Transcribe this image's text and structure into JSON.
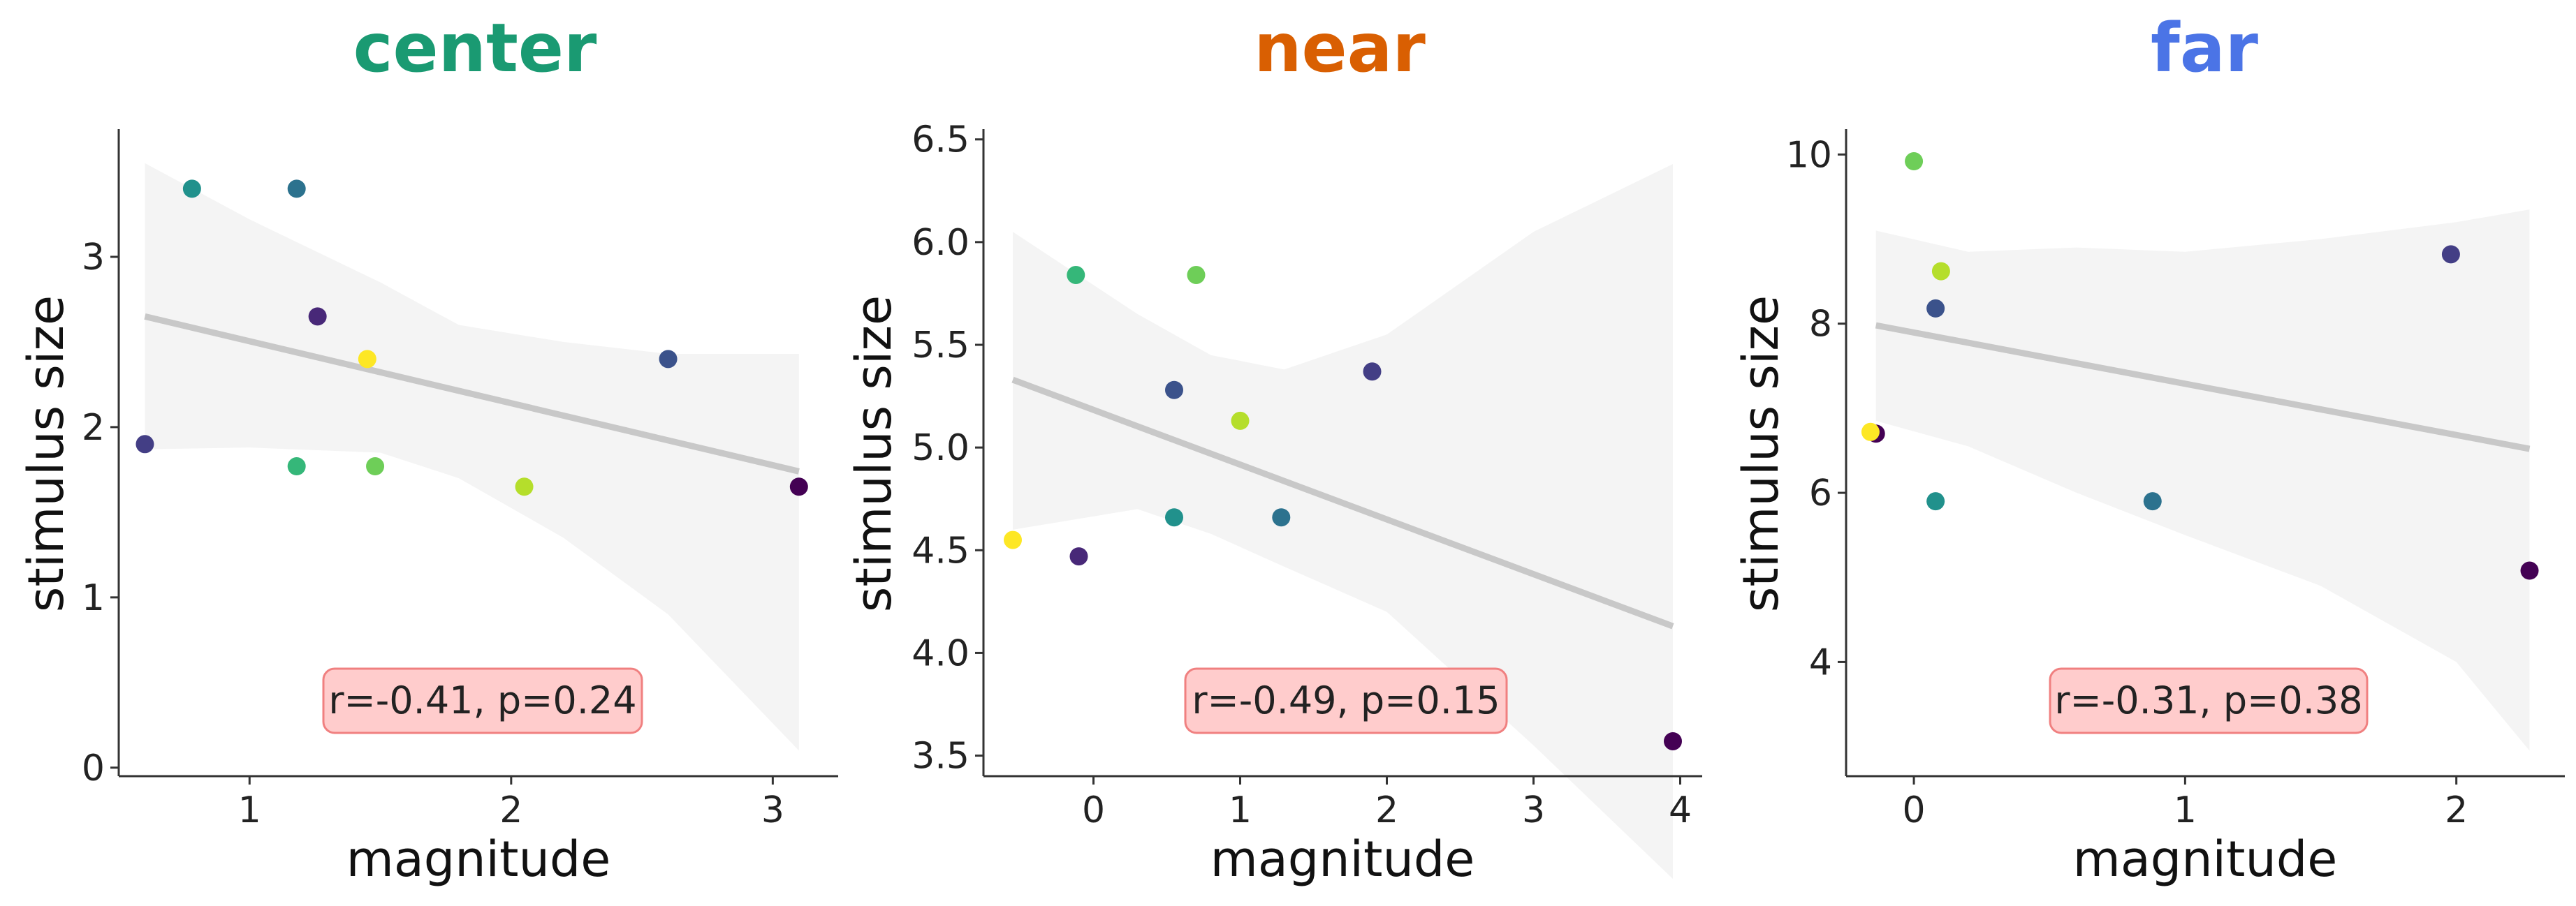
{
  "chart_data": [
    {
      "type": "scatter",
      "title": "center",
      "title_color": "#1a9a72",
      "xlabel": "magnitude",
      "ylabel": "stimulus size",
      "xlim": [
        0.5,
        3.25
      ],
      "ylim": [
        -0.05,
        3.75
      ],
      "xticks": [
        1,
        2,
        3
      ],
      "yticks": [
        0,
        1,
        2,
        3
      ],
      "points": [
        {
          "x": 0.6,
          "y": 1.9,
          "color": "#433e85"
        },
        {
          "x": 0.78,
          "y": 3.4,
          "color": "#21918c"
        },
        {
          "x": 1.18,
          "y": 3.4,
          "color": "#2c728e"
        },
        {
          "x": 1.26,
          "y": 2.65,
          "color": "#482878"
        },
        {
          "x": 1.45,
          "y": 2.4,
          "color": "#fde725"
        },
        {
          "x": 1.18,
          "y": 1.77,
          "color": "#35b779"
        },
        {
          "x": 1.48,
          "y": 1.77,
          "color": "#6ece58"
        },
        {
          "x": 2.05,
          "y": 1.65,
          "color": "#b5de2b"
        },
        {
          "x": 2.6,
          "y": 2.4,
          "color": "#3b528b"
        },
        {
          "x": 3.1,
          "y": 1.65,
          "color": "#440154"
        }
      ],
      "fit": {
        "x": [
          0.6,
          3.1
        ],
        "y": [
          2.65,
          1.74
        ]
      },
      "ci_upper": [
        [
          0.6,
          3.55
        ],
        [
          1.0,
          3.22
        ],
        [
          1.5,
          2.85
        ],
        [
          1.8,
          2.6
        ],
        [
          2.2,
          2.5
        ],
        [
          2.6,
          2.43
        ],
        [
          3.1,
          2.43
        ]
      ],
      "ci_lower": [
        [
          0.6,
          1.87
        ],
        [
          1.0,
          1.88
        ],
        [
          1.5,
          1.85
        ],
        [
          1.8,
          1.7
        ],
        [
          2.2,
          1.35
        ],
        [
          2.6,
          0.9
        ],
        [
          3.1,
          0.1
        ]
      ],
      "annotation": "r=-0.41, p=0.24",
      "grid": false
    },
    {
      "type": "scatter",
      "title": "near",
      "title_color": "#d95f02",
      "xlabel": "magnitude",
      "ylabel": "stimulus size",
      "xlim": [
        -0.75,
        4.15
      ],
      "ylim": [
        3.4,
        6.55
      ],
      "xticks": [
        0,
        1,
        2,
        3,
        4
      ],
      "yticks": [
        3.5,
        4.0,
        4.5,
        5.0,
        5.5,
        6.0,
        6.5
      ],
      "points": [
        {
          "x": -0.55,
          "y": 4.55,
          "color": "#fde725"
        },
        {
          "x": -0.12,
          "y": 5.84,
          "color": "#35b779"
        },
        {
          "x": -0.1,
          "y": 4.47,
          "color": "#482878"
        },
        {
          "x": 0.55,
          "y": 5.28,
          "color": "#3b528b"
        },
        {
          "x": 0.55,
          "y": 4.66,
          "color": "#21918c"
        },
        {
          "x": 0.7,
          "y": 5.84,
          "color": "#6ece58"
        },
        {
          "x": 1.0,
          "y": 5.13,
          "color": "#b5de2b"
        },
        {
          "x": 1.28,
          "y": 4.66,
          "color": "#2c728e"
        },
        {
          "x": 1.9,
          "y": 5.37,
          "color": "#433e85"
        },
        {
          "x": 3.95,
          "y": 3.57,
          "color": "#440154"
        }
      ],
      "fit": {
        "x": [
          -0.55,
          3.95
        ],
        "y": [
          5.33,
          4.13
        ]
      },
      "ci_upper": [
        [
          -0.55,
          6.05
        ],
        [
          0.3,
          5.65
        ],
        [
          0.8,
          5.45
        ],
        [
          1.3,
          5.38
        ],
        [
          2.0,
          5.55
        ],
        [
          3.0,
          6.05
        ],
        [
          3.95,
          6.38
        ]
      ],
      "ci_lower": [
        [
          -0.55,
          4.6
        ],
        [
          0.3,
          4.7
        ],
        [
          0.8,
          4.58
        ],
        [
          1.3,
          4.42
        ],
        [
          2.0,
          4.2
        ],
        [
          3.0,
          3.55
        ],
        [
          3.95,
          2.9
        ]
      ],
      "annotation": "r=-0.49, p=0.15",
      "grid": false
    },
    {
      "type": "scatter",
      "title": "far",
      "title_color": "#4b74e6",
      "xlabel": "magnitude",
      "ylabel": "stimulus size",
      "xlim": [
        -0.25,
        2.4
      ],
      "ylim": [
        2.65,
        10.3
      ],
      "xticks": [
        0,
        1,
        2
      ],
      "yticks": [
        4,
        6,
        8,
        10
      ],
      "points": [
        {
          "x": -0.14,
          "y": 6.7,
          "color": "#440154"
        },
        {
          "x": -0.16,
          "y": 6.72,
          "color": "#fde725"
        },
        {
          "x": 0.0,
          "y": 9.92,
          "color": "#6ece58"
        },
        {
          "x": 0.08,
          "y": 5.9,
          "color": "#21918c"
        },
        {
          "x": 0.08,
          "y": 8.18,
          "color": "#3b528b"
        },
        {
          "x": 0.1,
          "y": 8.62,
          "color": "#b5de2b"
        },
        {
          "x": 0.88,
          "y": 5.9,
          "color": "#2c728e"
        },
        {
          "x": 1.98,
          "y": 8.82,
          "color": "#433e85"
        },
        {
          "x": 2.27,
          "y": 5.08,
          "color": "#440154"
        }
      ],
      "fit": {
        "x": [
          -0.14,
          2.27
        ],
        "y": [
          7.98,
          6.52
        ]
      },
      "ci_upper": [
        [
          -0.14,
          9.1
        ],
        [
          0.2,
          8.85
        ],
        [
          0.6,
          8.9
        ],
        [
          1.0,
          8.85
        ],
        [
          1.5,
          9.0
        ],
        [
          2.0,
          9.2
        ],
        [
          2.27,
          9.35
        ]
      ],
      "ci_lower": [
        [
          -0.14,
          6.85
        ],
        [
          0.2,
          6.55
        ],
        [
          0.6,
          6.0
        ],
        [
          1.0,
          5.5
        ],
        [
          1.5,
          4.9
        ],
        [
          2.0,
          4.0
        ],
        [
          2.27,
          2.95
        ]
      ],
      "annotation": "r=-0.31, p=0.38",
      "grid": false
    }
  ],
  "style": {
    "fit_color": "#c8c8c8",
    "ci_color": "#f4f4f4",
    "annot_fill": "#ffcccc",
    "annot_stroke": "#f08080"
  }
}
